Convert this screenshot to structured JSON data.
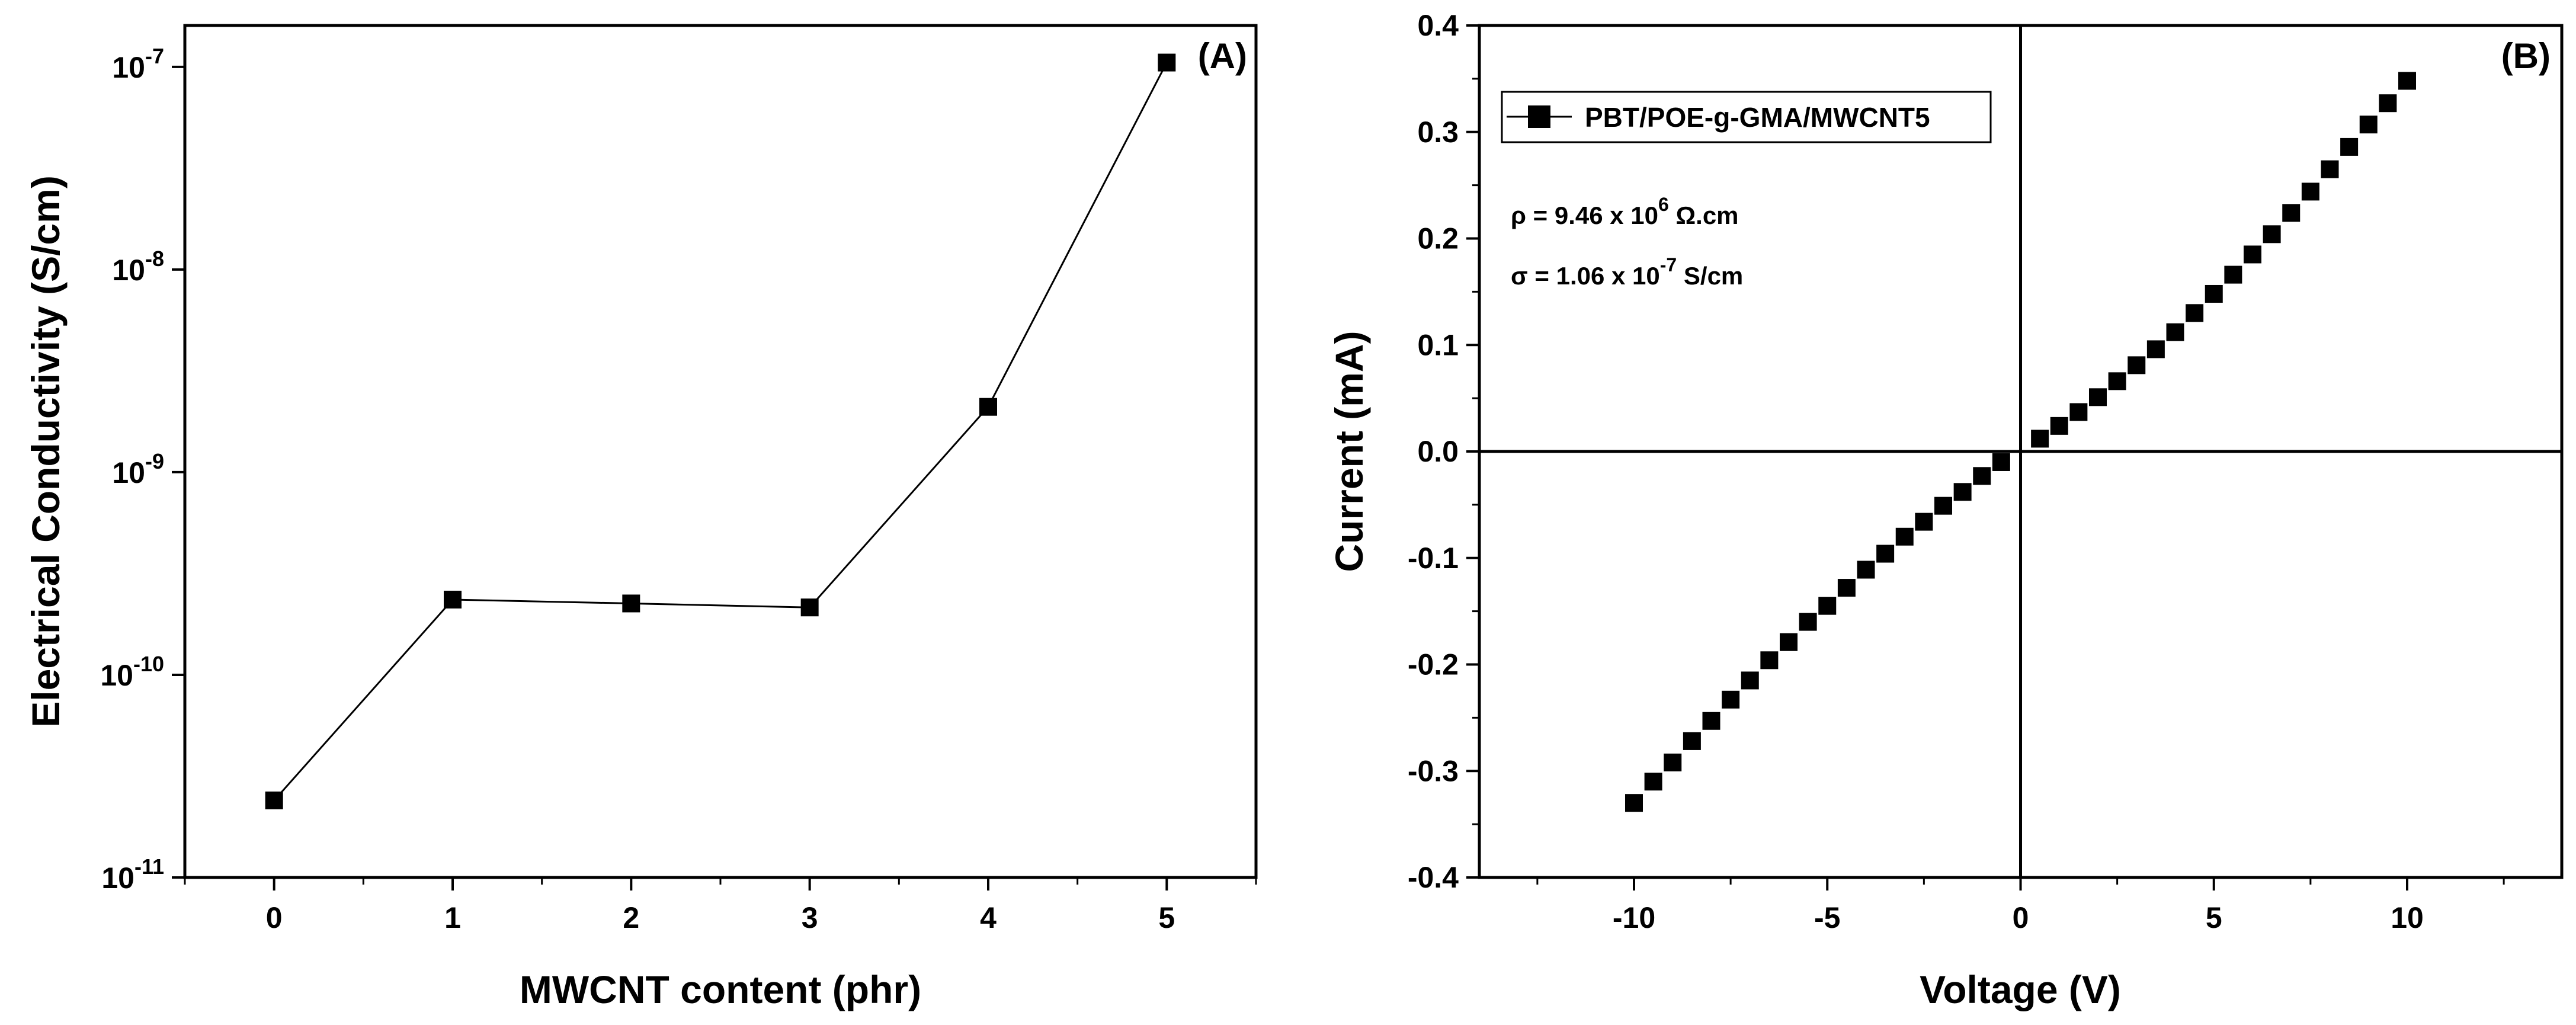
{
  "chart_data": [
    {
      "panel_label": "(A)",
      "type": "line",
      "xlabel": "MWCNT content (phr)",
      "ylabel": "Electrical Conductivity (S/cm)",
      "x": [
        0,
        1,
        2,
        3,
        4,
        5
      ],
      "y": [
        2.4e-11,
        2.35e-10,
        2.25e-10,
        2.15e-10,
        2.1e-09,
        1.05e-07
      ],
      "xlim": [
        -0.5,
        5.5
      ],
      "ylim": [
        1e-11,
        1.6e-07
      ],
      "yscale": "log",
      "x_tick_labels": [
        "0",
        "1",
        "2",
        "3",
        "4",
        "5"
      ],
      "y_tick_labels": [
        {
          "base": "10",
          "exp": "-11"
        },
        {
          "base": "10",
          "exp": "-10"
        },
        {
          "base": "10",
          "exp": "-9"
        },
        {
          "base": "10",
          "exp": "-8"
        },
        {
          "base": "10",
          "exp": "-7"
        }
      ],
      "marker": "square",
      "color": "#000000",
      "grid": false
    },
    {
      "panel_label": "(B)",
      "type": "scatter",
      "xlabel": "Voltage (V)",
      "ylabel": "Current (mA)",
      "xlim": [
        -14,
        14
      ],
      "ylim": [
        -0.4,
        0.4
      ],
      "x_tick_labels": [
        "-10",
        "-5",
        "0",
        "5",
        "10"
      ],
      "y_tick_labels": [
        "-0.4",
        "-0.3",
        "-0.2",
        "-0.1",
        "0.0",
        "0.1",
        "0.2",
        "0.3",
        "0.4"
      ],
      "series": [
        {
          "name": "PBT/POE-g-GMA/MWCNT5",
          "x": [
            -10,
            -9.5,
            -9,
            -8.5,
            -8,
            -7.5,
            -7,
            -6.5,
            -6,
            -5.5,
            -5,
            -4.5,
            -4,
            -3.5,
            -3,
            -2.5,
            -2,
            -1.5,
            -1,
            -0.5,
            0.5,
            1,
            1.5,
            2,
            2.5,
            3,
            3.5,
            4,
            4.5,
            5,
            5.5,
            6,
            6.5,
            7,
            7.5,
            8,
            8.5,
            9,
            9.5,
            10
          ],
          "y": [
            -0.33,
            -0.31,
            -0.292,
            -0.272,
            -0.253,
            -0.233,
            -0.215,
            -0.196,
            -0.179,
            -0.16,
            -0.145,
            -0.128,
            -0.111,
            -0.096,
            -0.08,
            -0.066,
            -0.051,
            -0.038,
            -0.023,
            -0.01,
            0.012,
            0.024,
            0.037,
            0.051,
            0.066,
            0.081,
            0.096,
            0.112,
            0.13,
            0.148,
            0.166,
            0.185,
            0.204,
            0.224,
            0.244,
            0.265,
            0.286,
            0.307,
            0.327,
            0.348
          ],
          "marker": "square",
          "color": "#000000"
        }
      ],
      "legend": {
        "label": "PBT/POE-g-GMA/MWCNT5",
        "position": "top-left"
      },
      "annotations": [
        {
          "prefix": "ρ = 9.46 x 10",
          "exp": "6",
          "suffix": " Ω.cm"
        },
        {
          "prefix": "σ = 1.06 x 10",
          "exp": "-7",
          "suffix": " S/cm"
        }
      ],
      "zero_lines": true,
      "grid": false
    }
  ]
}
